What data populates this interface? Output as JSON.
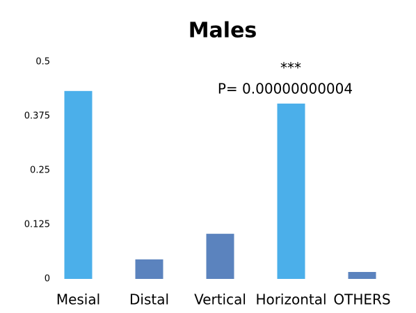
{
  "chart_data": {
    "type": "bar",
    "title": "Males",
    "categories": [
      "Mesial",
      "Distal",
      "Vertical",
      "Horizontal",
      "OTHERS"
    ],
    "values": [
      0.433,
      0.045,
      0.104,
      0.404,
      0.016
    ],
    "colors": [
      "#4bafea",
      "#5b83be",
      "#5b83be",
      "#4bafea",
      "#5b83be"
    ],
    "ylim": [
      0,
      0.5
    ],
    "yticks": [
      0,
      0.125,
      0.25,
      0.375,
      0.5
    ],
    "grid": false,
    "annotations": [
      "***",
      "P= 0.00000000004"
    ]
  }
}
